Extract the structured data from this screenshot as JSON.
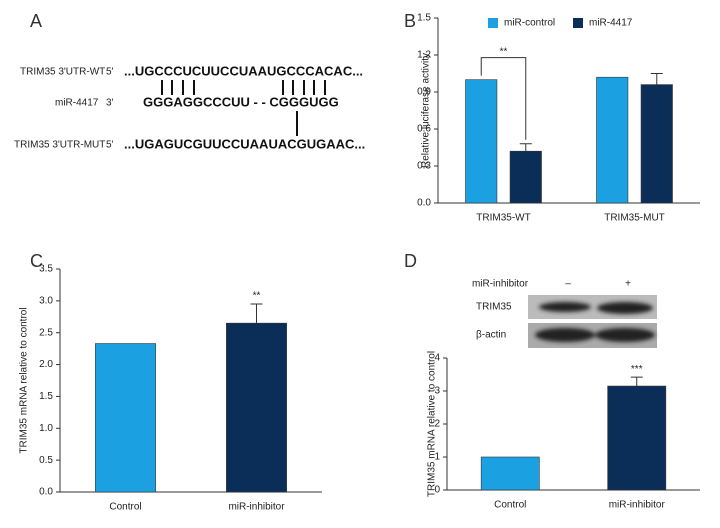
{
  "panel_labels": [
    "A",
    "B",
    "C",
    "D"
  ],
  "sequence": {
    "rows": [
      {
        "name": "TRIM35 3'UTR-WT",
        "end": "5'",
        "seq": "...UGCCCUCUUCCUAAUGCCCACAC..."
      },
      {
        "name": "miR-4417",
        "end": "3'",
        "seq": "GGGAGGCCCUU - - CGGGUGG"
      },
      {
        "name": "TRIM35 3'UTR-MUT",
        "end": "5'",
        "seq": "...UGAGUCGUUCCUAAUACGUGAAC..."
      }
    ]
  },
  "blot": {
    "header": "miR-inhibitor",
    "lanes": [
      "–",
      "+"
    ],
    "bands": [
      "TRIM35",
      "β-actin"
    ]
  },
  "chart_data": [
    {
      "type": "bar",
      "ylabel": "Relative luciferase activity",
      "categories": [
        "TRIM35-WT",
        "TRIM35-MUT"
      ],
      "series": [
        {
          "name": "miR-control",
          "color": "#1ba1e2",
          "values": [
            1.0,
            1.02
          ],
          "errors": [
            null,
            null
          ]
        },
        {
          "name": "miR-4417",
          "color": "#0b2e59",
          "values": [
            0.42,
            0.96
          ],
          "errors": [
            0.06,
            0.09
          ]
        }
      ],
      "significance": [
        "**",
        null
      ],
      "ylim": [
        0,
        1.5
      ],
      "yticks": [
        {
          "value": 0,
          "label": "0.0"
        },
        0.3,
        0.6,
        0.9,
        1.2,
        1.5
      ]
    },
    {
      "type": "bar",
      "ylabel": "TRIM35 mRNA relative to control",
      "categories": [
        "Control",
        "miR-inhibitor"
      ],
      "values": [
        2.33,
        2.65
      ],
      "errors": [
        null,
        0.3
      ],
      "colors": [
        "#1ba1e2",
        "#0b2e59"
      ],
      "significance": [
        null,
        "**"
      ],
      "ylim": [
        0,
        3.5
      ],
      "yticks": [
        {
          "value": 0,
          "label": "0.0"
        },
        0.5,
        {
          "value": 1,
          "label": "1.0"
        },
        1.5,
        {
          "value": 2,
          "label": "2.0"
        },
        2.5,
        {
          "value": 3,
          "label": "3.0"
        },
        3.5
      ]
    },
    {
      "type": "bar",
      "ylabel": "TRIM35 mRNA relative to control",
      "categories": [
        "Control",
        "miR-inhibitor"
      ],
      "values": [
        1,
        3.15
      ],
      "errors": [
        null,
        0.27
      ],
      "colors": [
        "#1ba1e2",
        "#0b2e59"
      ],
      "significance": [
        null,
        "***"
      ],
      "ylim": [
        0,
        4
      ],
      "yticks": [
        0,
        1,
        2,
        3,
        4
      ]
    }
  ]
}
